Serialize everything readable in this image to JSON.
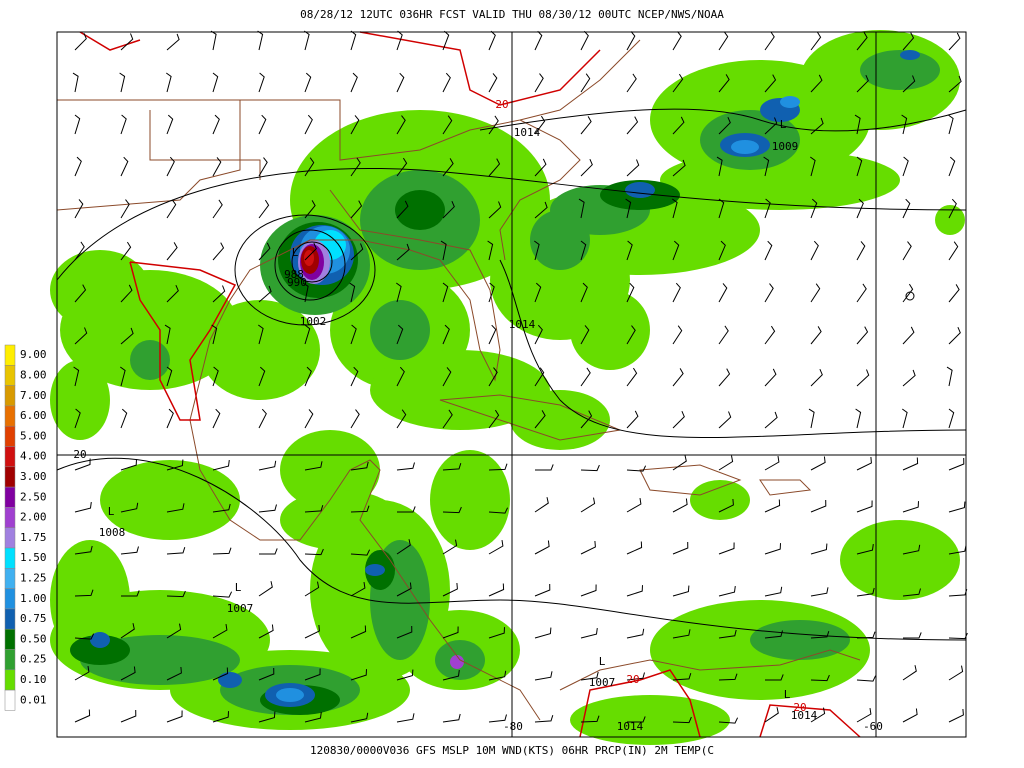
{
  "header": {
    "title": "08/28/12 12UTC  036HR  FCST VALID THU 08/30/12 00UTC  NCEP/NWS/NOAA"
  },
  "footer": {
    "caption": "120830/0000V036 GFS MSLP 10M WND(KTS) 06HR PRCP(IN) 2M TEMP(C"
  },
  "legend": {
    "items": [
      {
        "label": "9.00",
        "color": "#ffee00"
      },
      {
        "label": "8.00",
        "color": "#e8c400"
      },
      {
        "label": "7.00",
        "color": "#d89a00"
      },
      {
        "label": "6.00",
        "color": "#e87000"
      },
      {
        "label": "5.00",
        "color": "#e04000"
      },
      {
        "label": "4.00",
        "color": "#d01010"
      },
      {
        "label": "3.00",
        "color": "#a00000"
      },
      {
        "label": "2.50",
        "color": "#8000a0"
      },
      {
        "label": "2.00",
        "color": "#a040d0"
      },
      {
        "label": "1.75",
        "color": "#a080e0"
      },
      {
        "label": "1.50",
        "color": "#00e0ff"
      },
      {
        "label": "1.25",
        "color": "#40b0f0"
      },
      {
        "label": "1.00",
        "color": "#2090e0"
      },
      {
        "label": "0.75",
        "color": "#1060b0"
      },
      {
        "label": "0.50",
        "color": "#007000"
      },
      {
        "label": "0.25",
        "color": "#30a030"
      },
      {
        "label": "0.10",
        "color": "#66dd00"
      },
      {
        "label": "0.01",
        "color": "#ffffff"
      }
    ]
  },
  "map": {
    "labels": [
      {
        "text": "20",
        "color": "#d00000"
      },
      {
        "text": "1014",
        "color": "#000000"
      },
      {
        "text": "L",
        "color": "#000000"
      },
      {
        "text": "1009",
        "color": "#000000"
      },
      {
        "text": "L",
        "color": "#000000"
      },
      {
        "text": "988",
        "color": "#000000"
      },
      {
        "text": "990",
        "color": "#000000"
      },
      {
        "text": "1002",
        "color": "#000000"
      },
      {
        "text": "1014",
        "color": "#000000"
      },
      {
        "text": "20",
        "color": "#000000"
      },
      {
        "text": "L",
        "color": "#000000"
      },
      {
        "text": "1008",
        "color": "#000000"
      },
      {
        "text": "L",
        "color": "#000000"
      },
      {
        "text": "1007",
        "color": "#000000"
      },
      {
        "text": "L",
        "color": "#000000"
      },
      {
        "text": "1007",
        "color": "#000000"
      },
      {
        "text": "20",
        "color": "#d00000"
      },
      {
        "text": "1014",
        "color": "#000000"
      },
      {
        "text": "L",
        "color": "#000000"
      },
      {
        "text": "1014",
        "color": "#000000"
      },
      {
        "text": "20",
        "color": "#d00000"
      },
      {
        "text": "-80",
        "color": "#000000"
      },
      {
        "text": "-60",
        "color": "#000000"
      }
    ]
  }
}
